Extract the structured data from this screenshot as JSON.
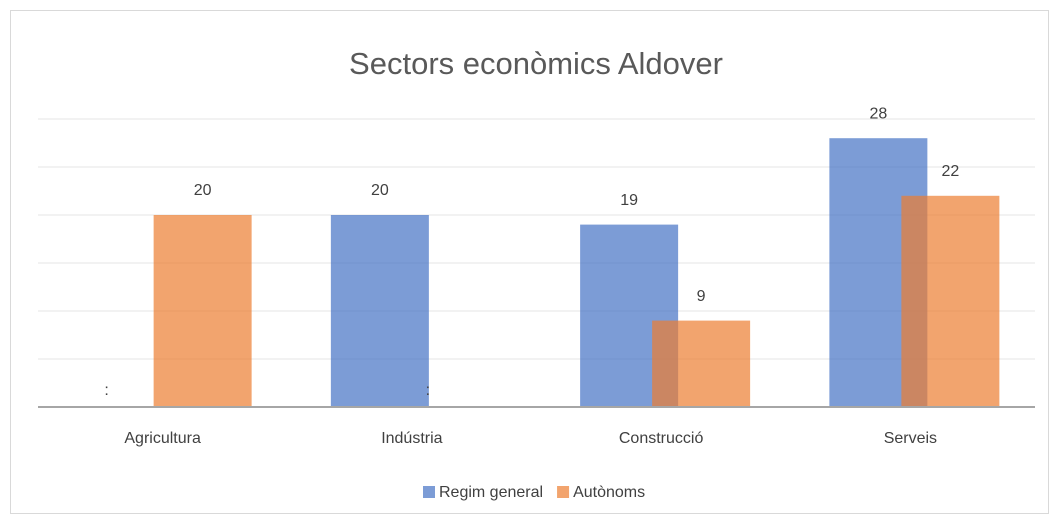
{
  "chart_data": {
    "type": "bar",
    "title": "Sectors econòmics Aldover",
    "categories": [
      "Agricultura",
      "Indústria",
      "Construcció",
      "Serveis"
    ],
    "series": [
      {
        "name": "Regim general",
        "color": "#4472c4",
        "values": [
          null,
          20,
          19,
          28
        ],
        "value_labels": [
          ":",
          "20",
          "19",
          "28"
        ]
      },
      {
        "name": "Autònoms",
        "color": "#ed7d31",
        "values": [
          20,
          null,
          9,
          22
        ],
        "value_labels": [
          "20",
          ":",
          "9",
          "22"
        ]
      }
    ],
    "ylim": [
      0,
      30
    ],
    "yticks": [
      0,
      5,
      10,
      15,
      20,
      25,
      30
    ],
    "grid": true,
    "legend": "bottom"
  }
}
